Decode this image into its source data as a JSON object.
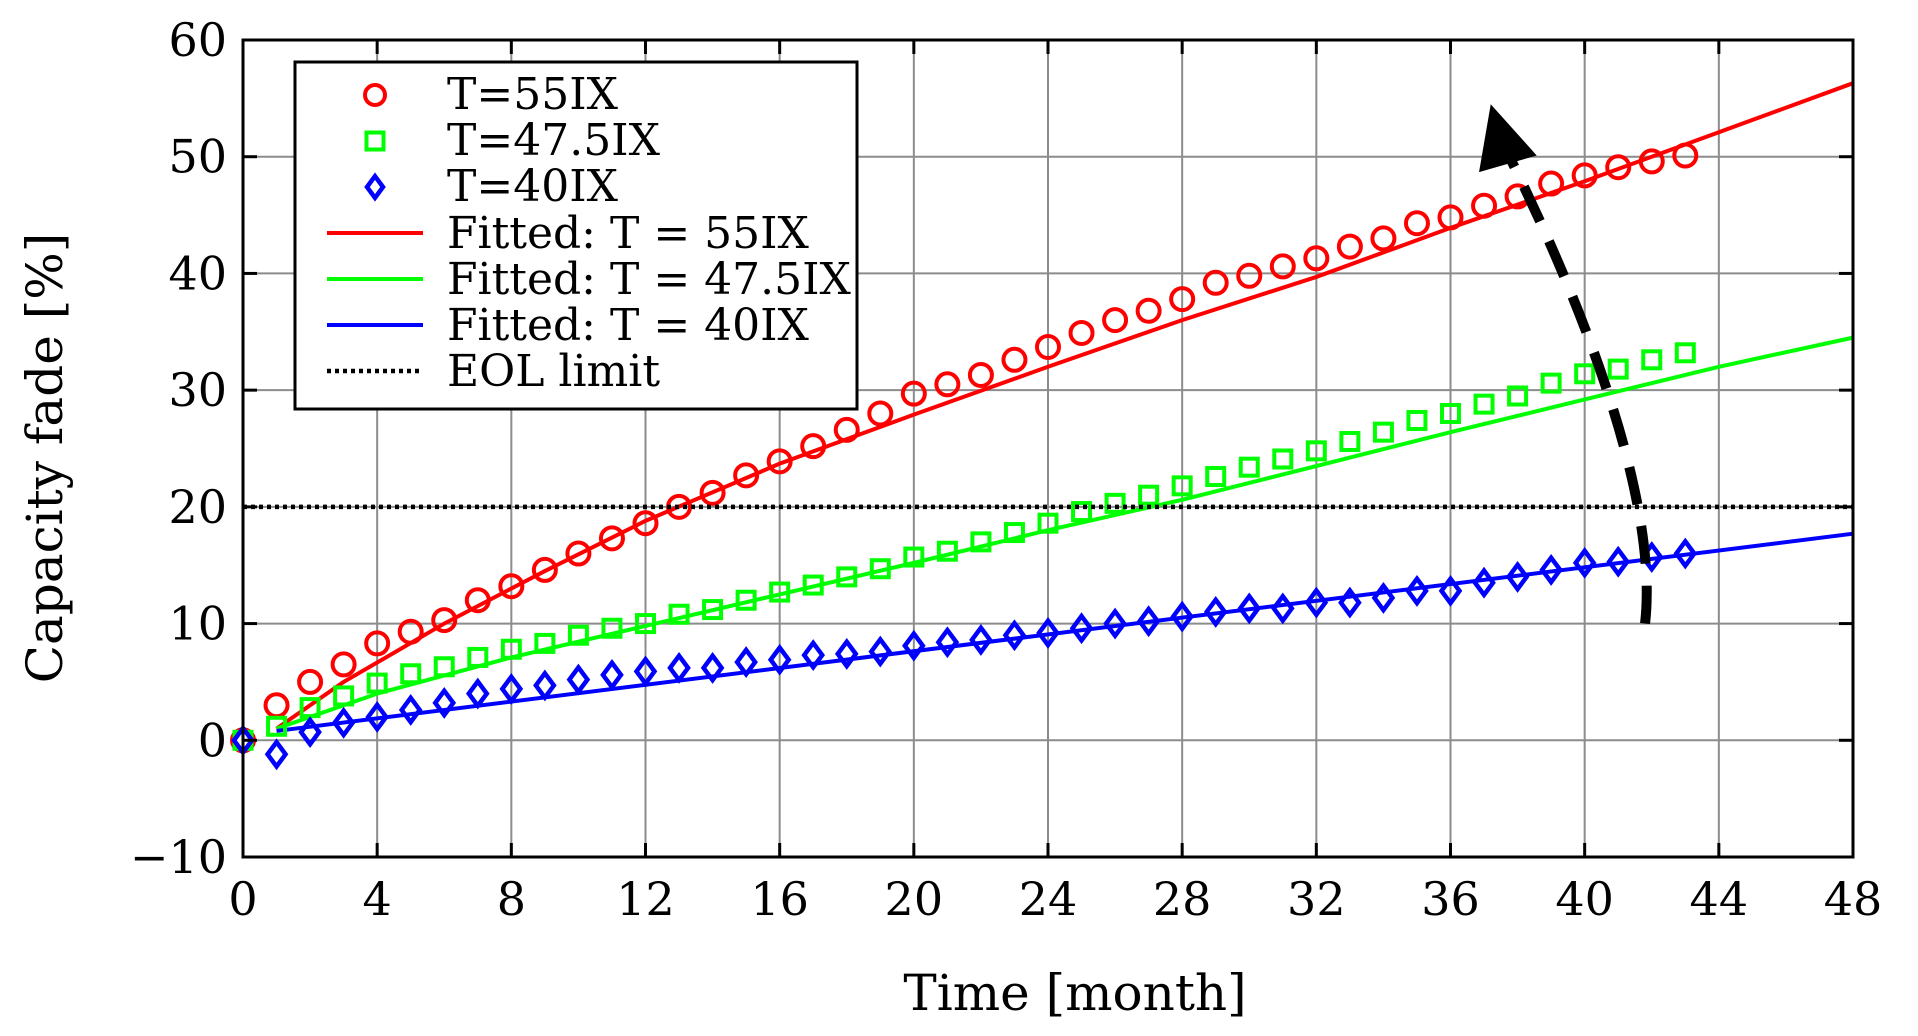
{
  "chart_data": {
    "type": "scatter",
    "title": "",
    "xlabel": "Time [month]",
    "ylabel": "Capacity fade [%]",
    "xlim": [
      0,
      48
    ],
    "ylim": [
      -10,
      60
    ],
    "x_ticks": [
      0,
      4,
      8,
      12,
      16,
      20,
      24,
      28,
      32,
      36,
      40,
      44,
      48
    ],
    "y_ticks": [
      -10,
      0,
      10,
      20,
      30,
      40,
      50,
      60
    ],
    "x_tick_labels": [
      "0",
      "4",
      "8",
      "12",
      "16",
      "20",
      "24",
      "28",
      "32",
      "36",
      "40",
      "44",
      "48"
    ],
    "y_tick_labels": [
      "−10",
      "0",
      "10",
      "20",
      "30",
      "40",
      "50",
      "60"
    ],
    "grid": true,
    "legend_position": "top-left",
    "series": [
      {
        "name": "T=55IX",
        "kind": "markers",
        "marker": "circle",
        "color": "#ff0000",
        "x": [
          0,
          1,
          2,
          3,
          4,
          5,
          6,
          7,
          8,
          9,
          10,
          11,
          12,
          13,
          14,
          15,
          16,
          17,
          18,
          19,
          20,
          21,
          22,
          23,
          24,
          25,
          26,
          27,
          28,
          29,
          30,
          31,
          32,
          33,
          34,
          35,
          36,
          37,
          38,
          39,
          40,
          41,
          42,
          43
        ],
        "values": [
          0,
          3,
          5,
          6.5,
          8.3,
          9.3,
          10.3,
          12,
          13.2,
          14.6,
          16,
          17.3,
          18.6,
          20,
          21.2,
          22.7,
          23.9,
          25.2,
          26.6,
          28,
          29.7,
          30.5,
          31.3,
          32.6,
          33.7,
          34.9,
          36,
          36.8,
          37.8,
          39.2,
          39.8,
          40.6,
          41.3,
          42.3,
          43,
          44.3,
          44.8,
          45.8,
          46.6,
          47.7,
          48.4,
          49.1,
          49.6,
          50.1
        ]
      },
      {
        "name": "T=47.5IX",
        "kind": "markers",
        "marker": "square",
        "color": "#00ff00",
        "x": [
          0,
          1,
          2,
          3,
          4,
          5,
          6,
          7,
          8,
          9,
          10,
          11,
          12,
          13,
          14,
          15,
          16,
          17,
          18,
          19,
          20,
          21,
          22,
          23,
          24,
          25,
          26,
          27,
          28,
          29,
          30,
          31,
          32,
          33,
          34,
          35,
          36,
          37,
          38,
          39,
          40,
          41,
          42,
          43
        ],
        "values": [
          0,
          1.2,
          2.8,
          3.8,
          4.9,
          5.7,
          6.3,
          7.1,
          7.8,
          8.3,
          9,
          9.6,
          10,
          10.8,
          11.2,
          12,
          12.7,
          13.3,
          14,
          14.7,
          15.7,
          16.2,
          17,
          17.8,
          18.6,
          19.6,
          20.3,
          21,
          21.8,
          22.6,
          23.4,
          24.1,
          24.8,
          25.6,
          26.4,
          27.4,
          28,
          28.8,
          29.5,
          30.6,
          31.4,
          31.8,
          32.6,
          33.2
        ]
      },
      {
        "name": "T=40IX",
        "kind": "markers",
        "marker": "diamond",
        "color": "#0000ff",
        "x": [
          0,
          1,
          2,
          3,
          4,
          5,
          6,
          7,
          8,
          9,
          10,
          11,
          12,
          13,
          14,
          15,
          16,
          17,
          18,
          19,
          20,
          21,
          22,
          23,
          24,
          25,
          26,
          27,
          28,
          29,
          30,
          31,
          32,
          33,
          34,
          35,
          36,
          37,
          38,
          39,
          40,
          41,
          42,
          43
        ],
        "values": [
          0,
          -1.2,
          0.7,
          1.5,
          2,
          2.6,
          3.2,
          4,
          4.4,
          4.7,
          5.2,
          5.6,
          5.9,
          6.2,
          6.2,
          6.7,
          6.9,
          7.3,
          7.4,
          7.6,
          8.1,
          8.4,
          8.6,
          9,
          9.2,
          9.6,
          10,
          10.2,
          10.6,
          11,
          11.3,
          11.3,
          11.8,
          11.8,
          12.2,
          12.8,
          12.8,
          13.5,
          14,
          14.6,
          15.2,
          15.3,
          15.7,
          16
        ]
      },
      {
        "name": "Fitted: T = 55IX",
        "kind": "line",
        "color": "#ff0000",
        "x": [
          1,
          3,
          6,
          9,
          12,
          16,
          20,
          24,
          28,
          32,
          36,
          40,
          44,
          48
        ],
        "values": [
          1,
          5,
          10,
          14.5,
          18.8,
          23.7,
          27.9,
          32,
          36,
          39.7,
          43.9,
          47.9,
          52.1,
          56.3
        ]
      },
      {
        "name": "Fitted: T = 47.5IX",
        "kind": "line",
        "color": "#00ff00",
        "x": [
          1,
          4,
          8,
          12,
          16,
          20,
          24,
          28,
          32,
          36,
          40,
          44,
          48
        ],
        "values": [
          1,
          4,
          7.1,
          9.8,
          12.5,
          15.2,
          18,
          20.6,
          23.5,
          26.4,
          29.2,
          32,
          34.5
        ]
      },
      {
        "name": "Fitted: T = 40IX",
        "kind": "line",
        "color": "#0000ff",
        "x": [
          1,
          48
        ],
        "values": [
          0.8,
          17.7
        ]
      },
      {
        "name": "EOL limit",
        "kind": "hline",
        "color": "#000000",
        "y": 20
      }
    ],
    "annotations": [
      {
        "type": "dashed-arrow",
        "description": "curved dashed arrow pointing up-left toward higher temperature",
        "path_data_units": [
          [
            41.8,
            10
          ],
          [
            42.2,
            20
          ],
          [
            40.2,
            36
          ],
          [
            37.5,
            51.5
          ]
        ],
        "head_at": [
          37.2,
          54.5
        ]
      }
    ]
  }
}
